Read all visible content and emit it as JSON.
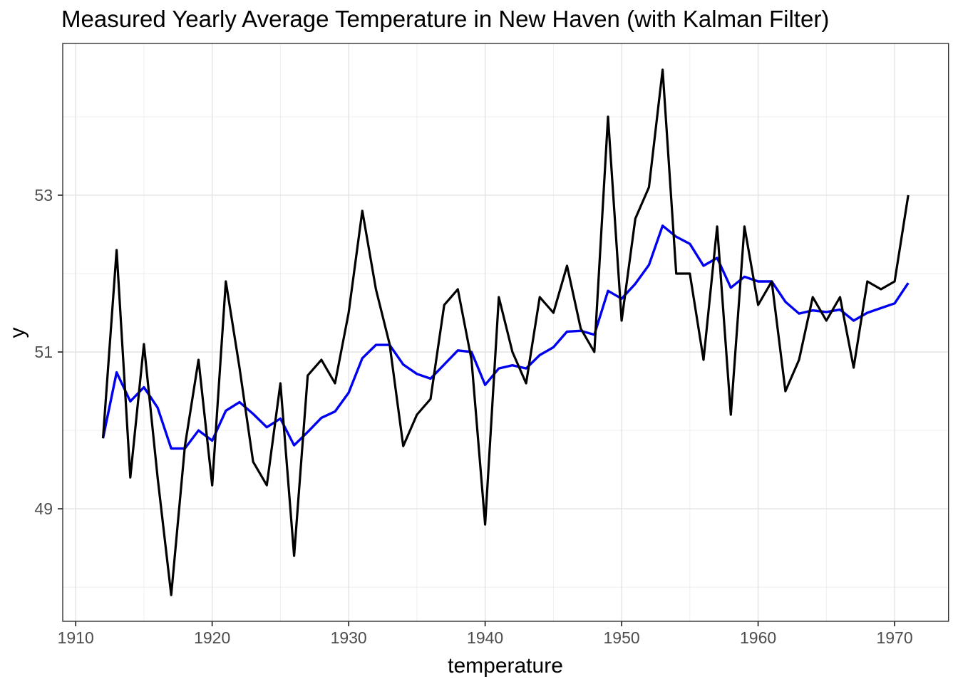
{
  "title": "Measured Yearly Average Temperature in New Haven (with Kalman Filter)",
  "axes": {
    "x_label": "temperature",
    "y_label": "y",
    "x_tick_labels": [
      "1910",
      "1920",
      "1930",
      "1940",
      "1950",
      "1960",
      "1970"
    ],
    "y_tick_labels": [
      "49",
      "51",
      "53"
    ]
  },
  "colors": {
    "measured_line": "#000000",
    "kalman_line": "#0000F0",
    "panel_border": "#333333",
    "tick_mark": "#333333",
    "grid_major": "#E3E3E3",
    "grid_minor": "#EDEDED",
    "tick_text": "#4d4d4d",
    "background": "#ffffff"
  },
  "chart_data": {
    "type": "line",
    "title": "Measured Yearly Average Temperature in New Haven (with Kalman Filter)",
    "xlabel": "temperature",
    "ylabel": "y",
    "legend": "none",
    "grid": true,
    "xlim": [
      1909.05,
      1973.95
    ],
    "ylim": [
      47.565,
      54.935
    ],
    "x_major_ticks": [
      1910,
      1920,
      1930,
      1940,
      1950,
      1960,
      1970
    ],
    "x_minor_gridlines": [
      1915,
      1925,
      1935,
      1945,
      1955,
      1965
    ],
    "y_major_ticks": [
      49,
      51,
      53
    ],
    "y_minor_gridlines": [
      48,
      50,
      52,
      54
    ],
    "x": [
      1912,
      1913,
      1914,
      1915,
      1916,
      1917,
      1918,
      1919,
      1920,
      1921,
      1922,
      1923,
      1924,
      1925,
      1926,
      1927,
      1928,
      1929,
      1930,
      1931,
      1932,
      1933,
      1934,
      1935,
      1936,
      1937,
      1938,
      1939,
      1940,
      1941,
      1942,
      1943,
      1944,
      1945,
      1946,
      1947,
      1948,
      1949,
      1950,
      1951,
      1952,
      1953,
      1954,
      1955,
      1956,
      1957,
      1958,
      1959,
      1960,
      1961,
      1962,
      1963,
      1964,
      1965,
      1966,
      1967,
      1968,
      1969,
      1970,
      1971
    ],
    "series": [
      {
        "name": "measured",
        "color": "#000000",
        "width": 3.2,
        "values": [
          49.9,
          52.3,
          49.4,
          51.1,
          49.4,
          47.9,
          49.8,
          50.9,
          49.3,
          51.9,
          50.8,
          49.6,
          49.3,
          50.6,
          48.4,
          50.7,
          50.9,
          50.6,
          51.5,
          52.8,
          51.8,
          51.1,
          49.8,
          50.2,
          50.4,
          51.6,
          51.8,
          50.9,
          48.8,
          51.7,
          51.0,
          50.6,
          51.7,
          51.5,
          52.1,
          51.3,
          51.0,
          54.0,
          51.4,
          52.7,
          53.1,
          54.6,
          52.0,
          52.0,
          50.9,
          52.6,
          50.2,
          52.6,
          51.6,
          51.9,
          50.5,
          50.9,
          51.7,
          51.4,
          51.7,
          50.8,
          51.9,
          51.8,
          51.9,
          53.0
        ]
      },
      {
        "name": "kalman_filter",
        "color": "#0000F0",
        "width": 3.4,
        "values": [
          49.9,
          50.74,
          50.37,
          50.55,
          50.29,
          49.77,
          49.77,
          50.0,
          49.87,
          50.25,
          50.36,
          50.21,
          50.04,
          50.15,
          49.81,
          49.98,
          50.16,
          50.24,
          50.48,
          50.92,
          51.09,
          51.09,
          50.84,
          50.72,
          50.66,
          50.84,
          51.02,
          51.0,
          50.58,
          50.79,
          50.83,
          50.79,
          50.96,
          51.06,
          51.26,
          51.27,
          51.22,
          51.78,
          51.68,
          51.87,
          52.11,
          52.61,
          52.47,
          52.38,
          52.1,
          52.2,
          51.82,
          51.96,
          51.9,
          51.9,
          51.64,
          51.49,
          51.53,
          51.51,
          51.54,
          51.4,
          51.5,
          51.56,
          51.62,
          51.88
        ]
      }
    ]
  }
}
